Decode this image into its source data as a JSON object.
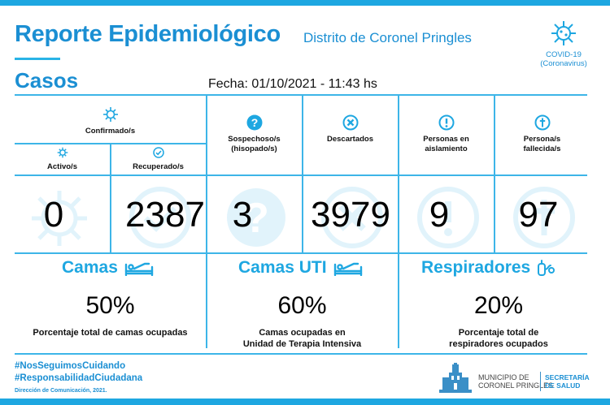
{
  "header": {
    "title": "Reporte Epidemiológico",
    "subtitle": "Distrito de Coronel Pringles",
    "covid_line1": "COVID-19",
    "covid_line2": "(Coronavirus)"
  },
  "casos_label": "Casos",
  "fecha": "Fecha: 01/10/2021 - 11:43 hs",
  "stats": {
    "confirmados": {
      "label": "Confirmado/s",
      "icon": "virus-icon"
    },
    "activos": {
      "label": "Activo/s",
      "value": "0",
      "icon": "virus-icon"
    },
    "recuperados": {
      "label": "Recuperado/s",
      "value": "2387",
      "icon": "check-circle-icon"
    },
    "sospechosos": {
      "label_line1": "Sospechoso/s",
      "label_line2": "(hisopado/s)",
      "value": "3",
      "icon": "question-icon"
    },
    "descartados": {
      "label": "Descartados",
      "value": "3979",
      "icon": "x-circle-icon"
    },
    "aislamiento": {
      "label_line1": "Personas en",
      "label_line2": "aislamiento",
      "value": "9",
      "icon": "exclamation-icon"
    },
    "fallecidos": {
      "label_line1": "Persona/s",
      "label_line2": "fallecida/s",
      "value": "97",
      "icon": "cross-icon"
    }
  },
  "sections": {
    "camas": {
      "title": "Camas",
      "percent": "50%",
      "desc_line1": "Porcentaje total de camas ocupadas",
      "desc_line2": "",
      "icon": "bed-icon"
    },
    "camas_uti": {
      "title": "Camas UTI",
      "percent": "60%",
      "desc_line1": "Camas ocupadas en",
      "desc_line2": "Unidad de Terapia Intensiva",
      "icon": "bed-icon"
    },
    "respiradores": {
      "title": "Respiradores",
      "percent": "20%",
      "desc_line1": "Porcentaje total de",
      "desc_line2": "respiradores ocupados",
      "icon": "respirator-icon"
    }
  },
  "footer": {
    "hashtag1": "#NosSeguimosCuidando",
    "hashtag2": "#ResponsabilidadCiudadana",
    "direccion": "Dirección de Comunicación, 2021.",
    "municipio_line1": "MUNICIPIO DE",
    "municipio_line2": "CORONEL PRINGLES",
    "secretaria_line1": "SECRETARÍA",
    "secretaria_line2": "DE SALUD"
  },
  "colors": {
    "accent": "#1ea7e1",
    "title_blue": "#1b8fd3",
    "grid_line": "#3db5e8"
  }
}
